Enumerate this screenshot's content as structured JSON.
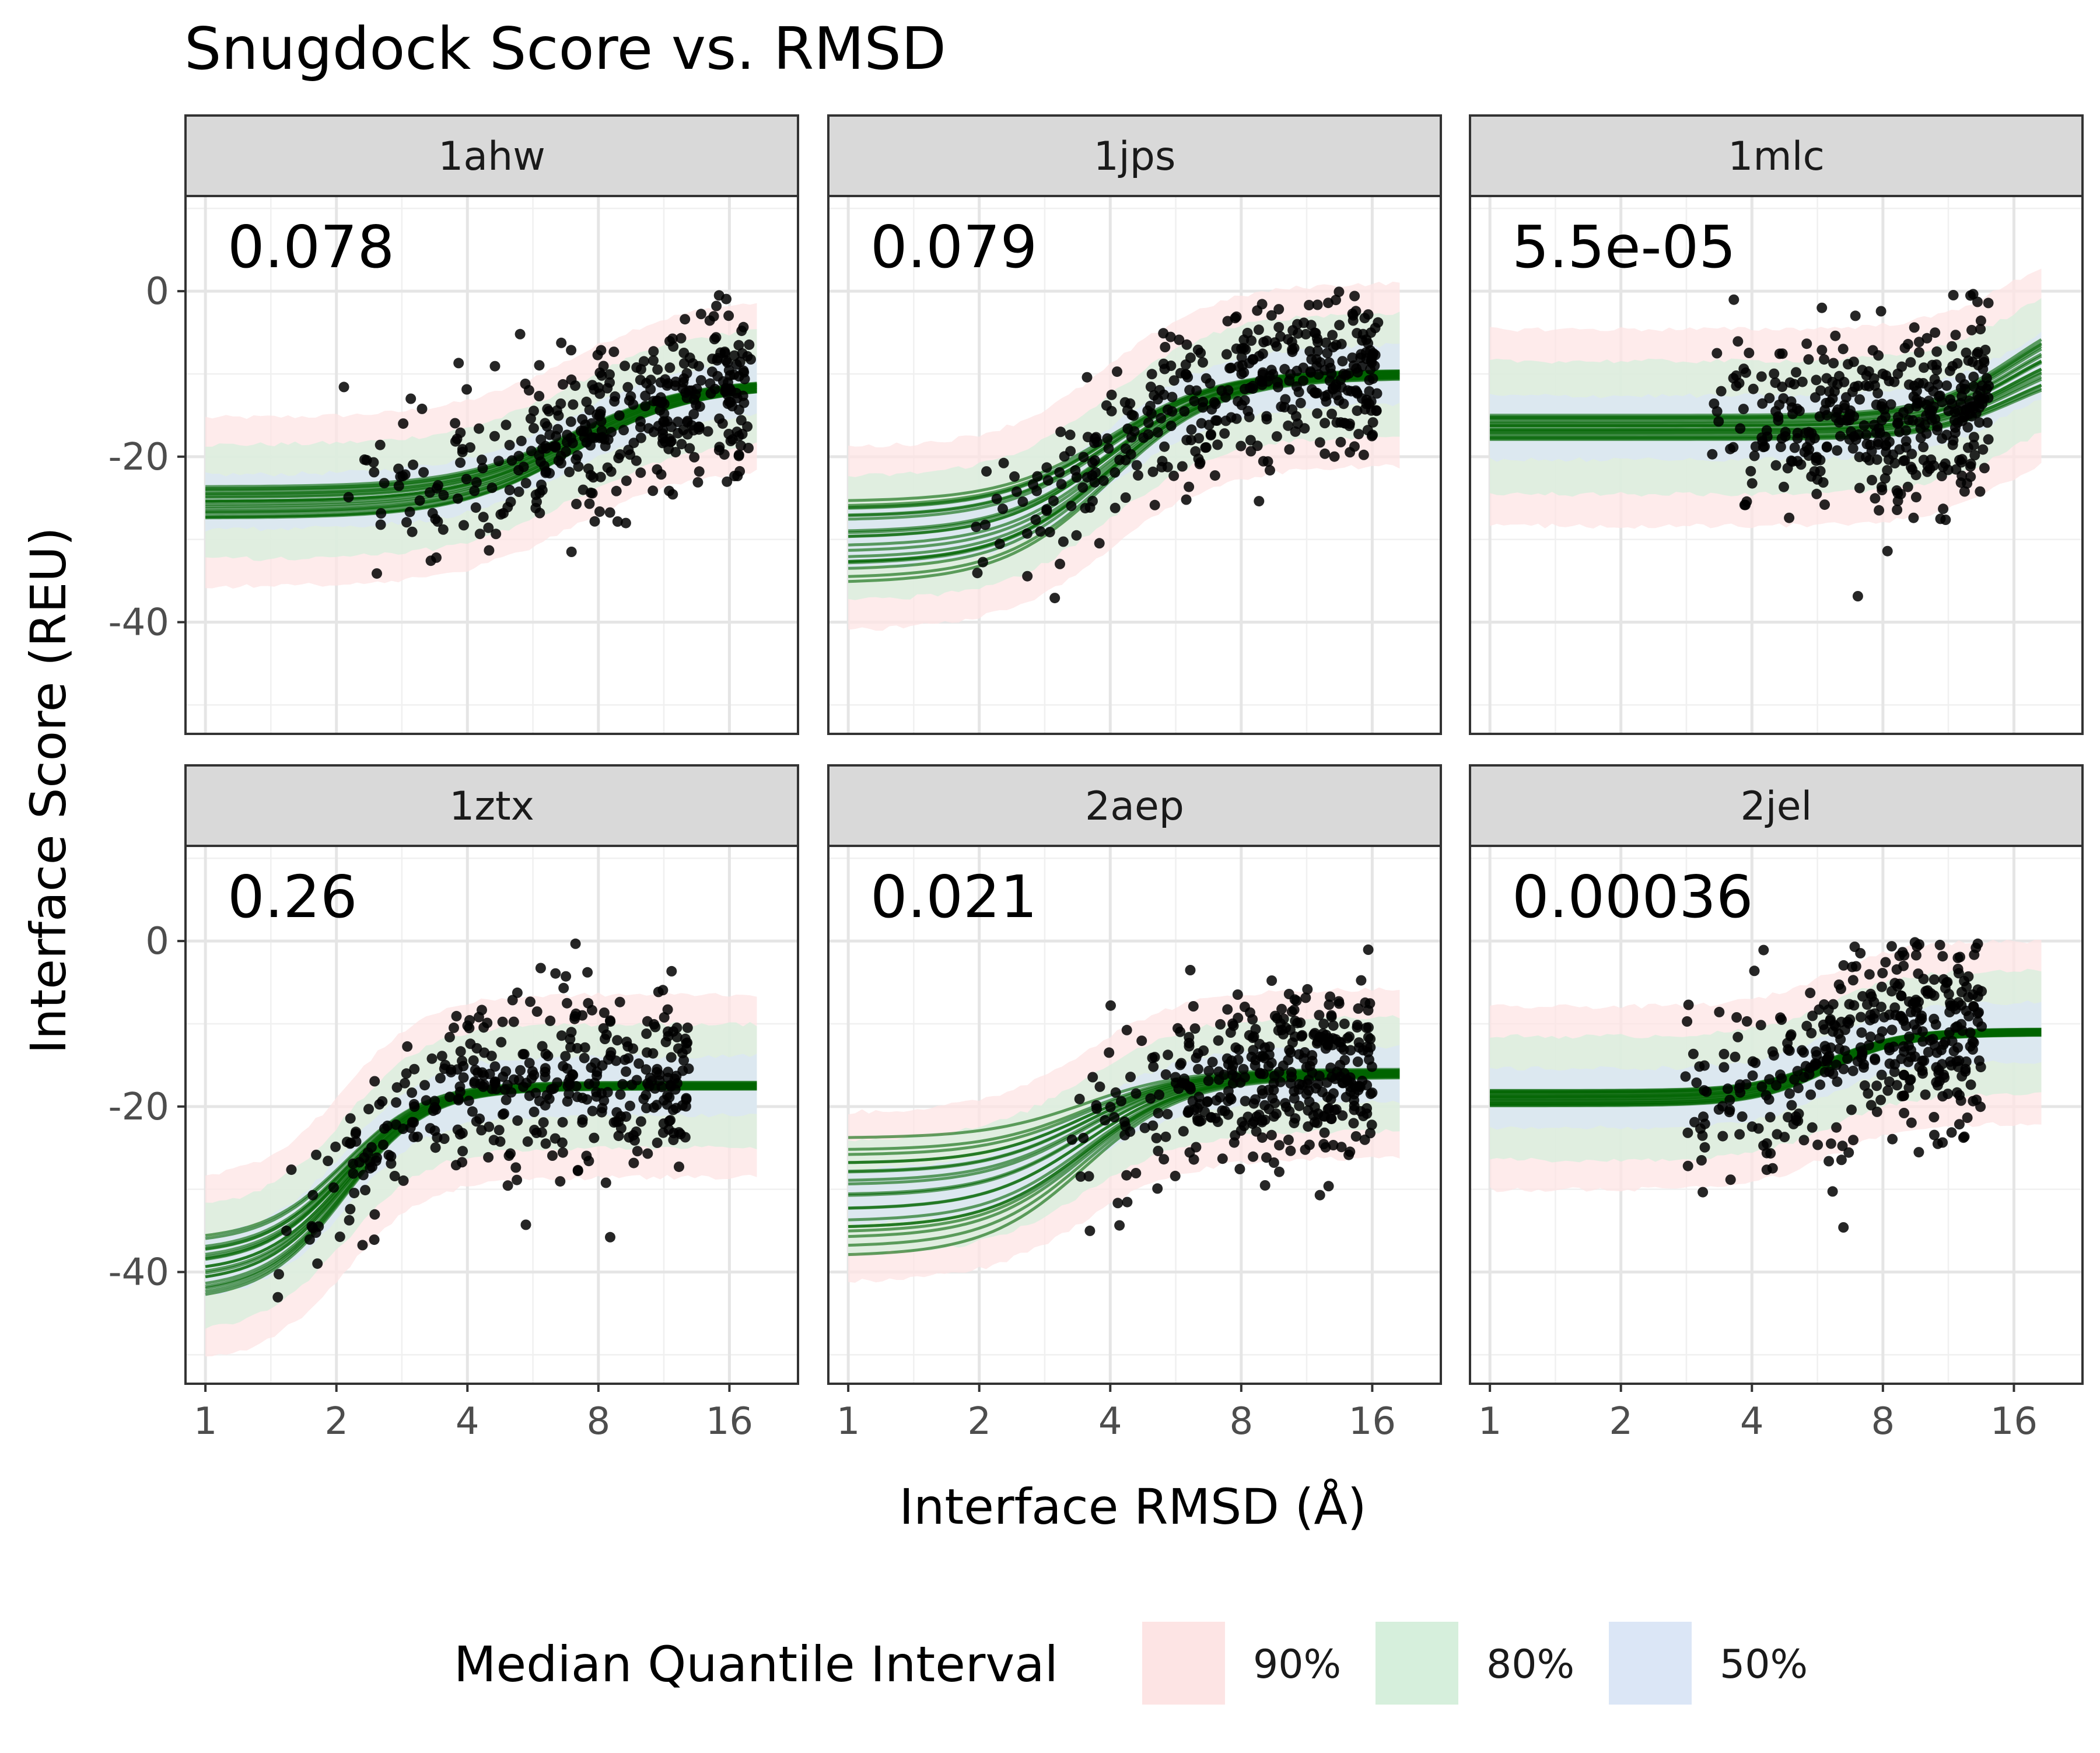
{
  "chart_data": {
    "type": "scatter",
    "title": "Snugdock Score vs. RMSD",
    "xlabel": "Interface RMSD (Å)",
    "ylabel": "Interface Score (REU)",
    "x_scale": "log2",
    "x_range": [
      0.9,
      23
    ],
    "x_ticks": [
      1,
      2,
      4,
      8,
      16
    ],
    "x_tick_labels": [
      "1",
      "2",
      "4",
      "8",
      "16"
    ],
    "y_range": [
      -53.5,
      11.5
    ],
    "y_ticks": [
      0,
      -20,
      -40
    ],
    "y_tick_labels": [
      "0",
      "-20",
      "-40"
    ],
    "grid": true,
    "legend": {
      "title": "Median Quantile Interval",
      "placement": "bottom",
      "entries": [
        {
          "label": "90%",
          "color": "#fde4e4"
        },
        {
          "label": "80%",
          "color": "#d6efdc"
        },
        {
          "label": "50%",
          "color": "#dbe6f6"
        }
      ]
    },
    "colors": {
      "curve": "#006400",
      "points": "#000000",
      "band90": "#fde4e4",
      "band80": "#d6efdc",
      "band50": "#dbe6f6",
      "strip": "#d9d9d9"
    },
    "panels": [
      {
        "name": "1ahw",
        "annotation": "0.078",
        "x_min": 2.0,
        "x_max": 18.0,
        "fit": {
          "low": -25.5,
          "high": -11.0,
          "mid": 7.0,
          "slope": 2.2
        },
        "low_spread": 2.0,
        "high_spread": 0.5,
        "band_half": 6.0,
        "point_spread": 5.0
      },
      {
        "name": "1jps",
        "annotation": "0.079",
        "x_min": 1.8,
        "x_max": 16.5,
        "fit": {
          "low": -30.0,
          "high": -10.0,
          "mid": 4.0,
          "slope": 2.4
        },
        "low_spread": 5.0,
        "high_spread": 0.5,
        "band_half": 6.5,
        "point_spread": 5.0
      },
      {
        "name": "1mlc",
        "annotation": "5.5e-05",
        "x_min": 3.0,
        "x_max": 14.0,
        "fit": {
          "low": -16.5,
          "high": -5.0,
          "mid": 16.0,
          "slope": 3.0
        },
        "low_spread": 1.5,
        "high_spread": 4.0,
        "band_half": 7.0,
        "point_spread": 5.5
      },
      {
        "name": "1ztx",
        "annotation": "0.26",
        "x_min": 1.3,
        "x_max": 13.0,
        "fit": {
          "low": -40.0,
          "high": -17.5,
          "mid": 2.1,
          "slope": 3.2
        },
        "low_spread": 3.5,
        "high_spread": 0.4,
        "band_half": 6.5,
        "point_spread": 5.5
      },
      {
        "name": "2aep",
        "annotation": "0.021",
        "x_min": 3.0,
        "x_max": 16.0,
        "fit": {
          "low": -31.0,
          "high": -16.0,
          "mid": 3.5,
          "slope": 2.6
        },
        "low_spread": 7.0,
        "high_spread": 0.5,
        "band_half": 6.0,
        "point_spread": 5.5
      },
      {
        "name": "2jel",
        "annotation": "0.00036",
        "x_min": 2.5,
        "x_max": 13.5,
        "fit": {
          "low": -19.0,
          "high": -11.0,
          "mid": 6.0,
          "slope": 3.5
        },
        "low_spread": 1.0,
        "high_spread": 0.4,
        "band_half": 6.5,
        "point_spread": 6.0
      }
    ]
  }
}
